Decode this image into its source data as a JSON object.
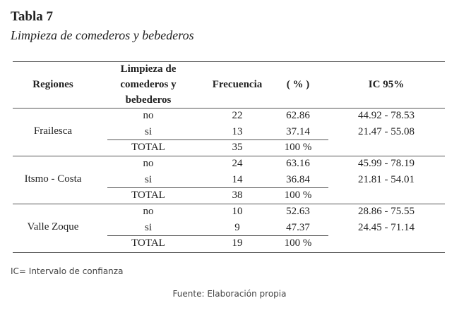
{
  "header": {
    "title": "Tabla 7",
    "subtitle": "Limpieza de comederos y bebederos"
  },
  "table": {
    "headers": {
      "region": "Regiones",
      "cleaning": [
        "Limpieza de",
        "comederos y",
        "bebederos"
      ],
      "frequency": "Frecuencia",
      "percent": "( % )",
      "ci": "IC 95%"
    },
    "groups": [
      {
        "region": "Frailesca",
        "rows": [
          [
            "no",
            22,
            62.86,
            "44.92 - 78.53"
          ],
          [
            "si",
            13,
            37.14,
            "21.47 - 55.08"
          ]
        ],
        "total": [
          "TOTAL",
          35,
          "100 %"
        ]
      },
      {
        "region": "Itsmo - Costa",
        "rows": [
          [
            "no",
            24,
            63.16,
            "45.99 - 78.19"
          ],
          [
            "si",
            14,
            36.84,
            "21.81 - 54.01"
          ]
        ],
        "total": [
          "TOTAL",
          38,
          "100 %"
        ]
      },
      {
        "region": "Valle Zoque",
        "rows": [
          [
            "no",
            10,
            52.63,
            "28.86 - 75.55"
          ],
          [
            "si",
            9,
            47.37,
            "24.45 - 71.14"
          ]
        ],
        "total": [
          "TOTAL",
          19,
          "100 %"
        ]
      }
    ]
  },
  "notes": {
    "abbreviation": "IC= Intervalo de confianza",
    "source": "Fuente: Elaboración propia"
  }
}
